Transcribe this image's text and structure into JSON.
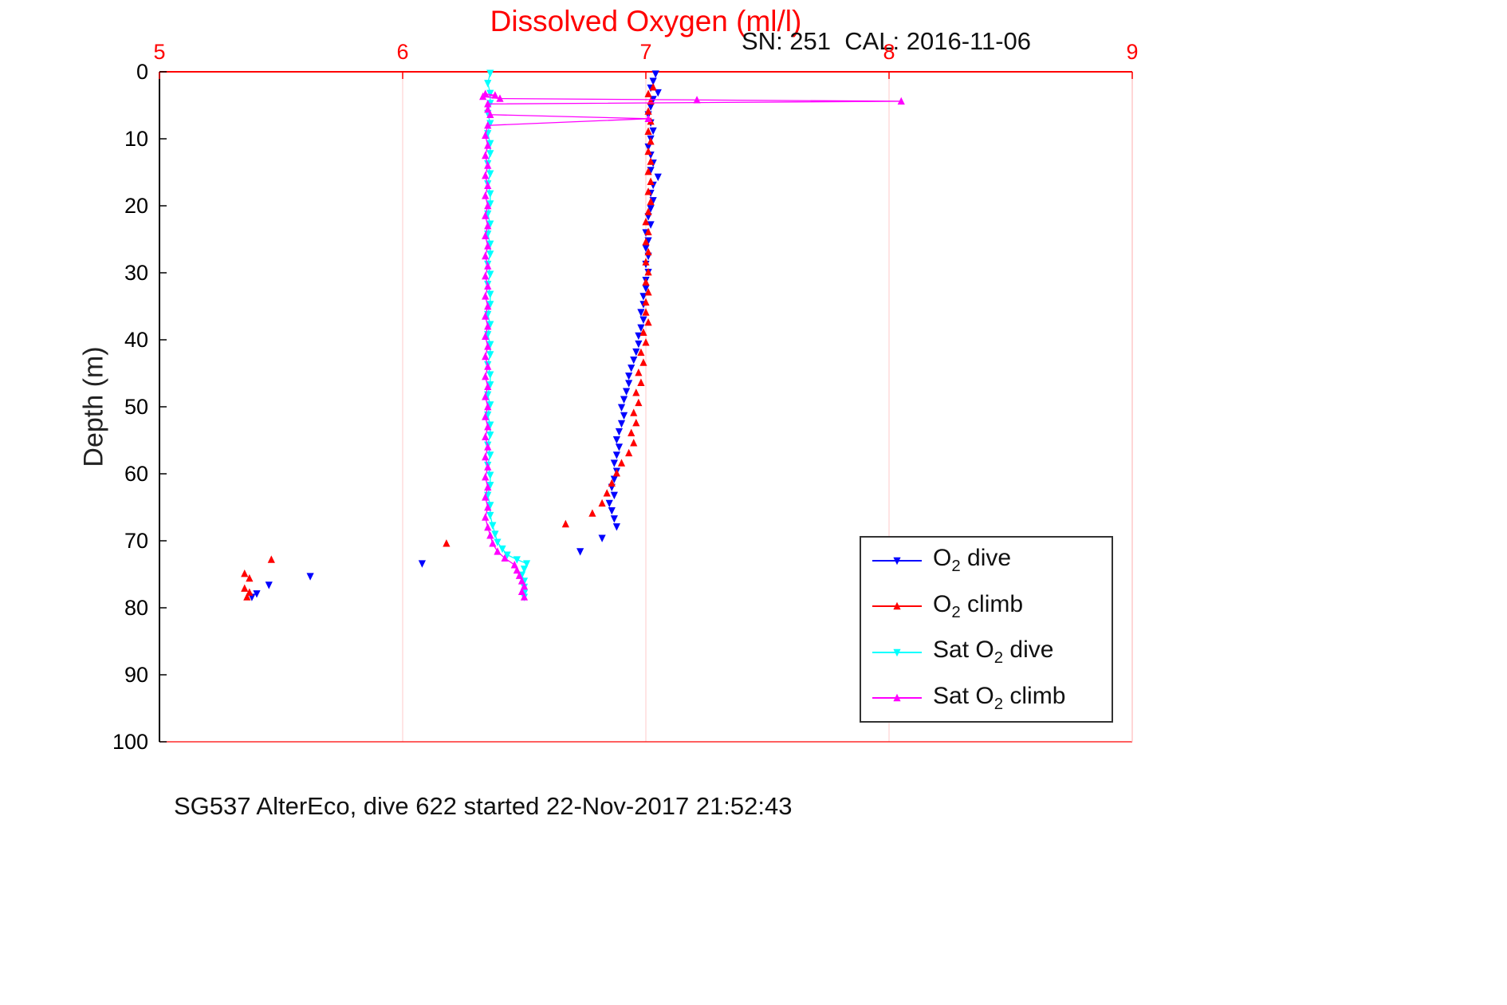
{
  "title": "Dissolved Oxygen (ml/l)",
  "annotation": "SN: 251  CAL: 2016-11-06",
  "caption": "SG537 AlterEco, dive 622 started 22-Nov-2017 21:52:43",
  "colors": {
    "title": "#ff0000",
    "x_axis": "#ff0000",
    "y_axis": "#000000",
    "grid": "#ffd9d9",
    "right_border": "#ffc4c4",
    "legend_border": "#333333"
  },
  "axes": {
    "x": {
      "position": "top",
      "min": 5,
      "max": 9,
      "ticks": [
        5,
        6,
        7,
        8,
        9
      ],
      "grid_ticks": [
        6,
        7,
        8
      ],
      "color": "#ff0000"
    },
    "y": {
      "label": "Depth (m)",
      "min": 0,
      "max": 100,
      "ticks": [
        0,
        10,
        20,
        30,
        40,
        50,
        60,
        70,
        80,
        90,
        100
      ],
      "inverted": true,
      "color": "#000000"
    }
  },
  "legend": {
    "entries": [
      {
        "id": "o2-dive",
        "pre": "O",
        "sub": "2",
        "post": " dive",
        "color": "#0000ff",
        "marker": "v"
      },
      {
        "id": "o2-climb",
        "pre": "O",
        "sub": "2",
        "post": " climb",
        "color": "#ff0000",
        "marker": "^"
      },
      {
        "id": "sat-o2-dive",
        "pre": "Sat O",
        "sub": "2",
        "post": " dive",
        "color": "#00ffff",
        "marker": "v"
      },
      {
        "id": "sat-o2-climb",
        "pre": "Sat O",
        "sub": "2",
        "post": " climb",
        "color": "#ff00ff",
        "marker": "^"
      }
    ]
  },
  "chart_data": {
    "type": "scatter",
    "title": "Dissolved Oxygen (ml/l)",
    "xlabel": "Dissolved Oxygen (ml/l)",
    "ylabel": "Depth (m)",
    "xlim": [
      5,
      9
    ],
    "ylim": [
      0,
      100
    ],
    "y_axis_inverted": true,
    "grid": "vertical-only",
    "legend_position": "bottom-right",
    "series": [
      {
        "name": "O2 dive",
        "id": "o2-dive",
        "color": "#0000ff",
        "marker": "v",
        "line": false,
        "points": [
          [
            7.04,
            0.3
          ],
          [
            7.03,
            1.4
          ],
          [
            7.02,
            2.4
          ],
          [
            7.05,
            3.1
          ],
          [
            7.03,
            4.1
          ],
          [
            7.02,
            5.2
          ],
          [
            7.01,
            6.4
          ],
          [
            7.02,
            7.6
          ],
          [
            7.03,
            8.8
          ],
          [
            7.02,
            10.0
          ],
          [
            7.01,
            11.2
          ],
          [
            7.02,
            12.4
          ],
          [
            7.03,
            13.6
          ],
          [
            7.02,
            14.7
          ],
          [
            7.05,
            15.7
          ],
          [
            7.03,
            16.9
          ],
          [
            7.02,
            18.1
          ],
          [
            7.03,
            19.2
          ],
          [
            7.02,
            20.4
          ],
          [
            7.01,
            21.6
          ],
          [
            7.02,
            22.8
          ],
          [
            7.0,
            24.0
          ],
          [
            7.01,
            25.2
          ],
          [
            7.0,
            26.3
          ],
          [
            7.01,
            27.5
          ],
          [
            7.0,
            28.7
          ],
          [
            7.01,
            29.9
          ],
          [
            7.0,
            31.1
          ],
          [
            7.0,
            32.3
          ],
          [
            6.99,
            33.5
          ],
          [
            6.99,
            34.7
          ],
          [
            6.98,
            35.9
          ],
          [
            6.99,
            37.0
          ],
          [
            6.98,
            38.2
          ],
          [
            6.97,
            39.4
          ],
          [
            6.97,
            40.6
          ],
          [
            6.96,
            41.8
          ],
          [
            6.95,
            43.0
          ],
          [
            6.94,
            44.2
          ],
          [
            6.93,
            45.4
          ],
          [
            6.93,
            46.5
          ],
          [
            6.92,
            47.7
          ],
          [
            6.91,
            48.9
          ],
          [
            6.9,
            50.1
          ],
          [
            6.91,
            51.3
          ],
          [
            6.9,
            52.5
          ],
          [
            6.89,
            53.7
          ],
          [
            6.88,
            54.9
          ],
          [
            6.89,
            56.0
          ],
          [
            6.88,
            57.2
          ],
          [
            6.87,
            58.4
          ],
          [
            6.88,
            59.6
          ],
          [
            6.87,
            60.8
          ],
          [
            6.86,
            62.0
          ],
          [
            6.87,
            63.2
          ],
          [
            6.85,
            64.4
          ],
          [
            6.86,
            65.5
          ],
          [
            6.87,
            66.7
          ],
          [
            6.88,
            67.9
          ],
          [
            6.82,
            69.6
          ],
          [
            6.73,
            71.6
          ],
          [
            6.08,
            73.4
          ],
          [
            5.62,
            75.3
          ],
          [
            5.45,
            76.6
          ],
          [
            5.4,
            77.9
          ],
          [
            5.38,
            78.4
          ]
        ]
      },
      {
        "name": "O2 climb",
        "id": "o2-climb",
        "color": "#ff0000",
        "marker": "^",
        "line": false,
        "points": [
          [
            5.36,
            78.4
          ],
          [
            5.37,
            77.7
          ],
          [
            5.35,
            77.1
          ],
          [
            5.37,
            75.6
          ],
          [
            5.35,
            74.9
          ],
          [
            5.46,
            72.8
          ],
          [
            6.18,
            70.4
          ],
          [
            6.67,
            67.5
          ],
          [
            6.78,
            65.9
          ],
          [
            6.82,
            64.4
          ],
          [
            6.84,
            62.9
          ],
          [
            6.86,
            61.4
          ],
          [
            6.88,
            59.9
          ],
          [
            6.9,
            58.4
          ],
          [
            6.93,
            56.9
          ],
          [
            6.95,
            55.4
          ],
          [
            6.94,
            53.9
          ],
          [
            6.96,
            52.4
          ],
          [
            6.95,
            50.9
          ],
          [
            6.97,
            49.4
          ],
          [
            6.96,
            47.9
          ],
          [
            6.98,
            46.4
          ],
          [
            6.97,
            44.9
          ],
          [
            6.99,
            43.4
          ],
          [
            6.98,
            41.9
          ],
          [
            7.0,
            40.4
          ],
          [
            6.99,
            38.9
          ],
          [
            7.01,
            37.4
          ],
          [
            7.0,
            35.9
          ],
          [
            7.0,
            34.4
          ],
          [
            7.01,
            32.9
          ],
          [
            7.0,
            31.4
          ],
          [
            7.01,
            29.9
          ],
          [
            7.0,
            28.4
          ],
          [
            7.01,
            26.9
          ],
          [
            7.0,
            25.4
          ],
          [
            7.01,
            23.9
          ],
          [
            7.0,
            22.4
          ],
          [
            7.01,
            20.9
          ],
          [
            7.02,
            19.4
          ],
          [
            7.01,
            17.9
          ],
          [
            7.02,
            16.4
          ],
          [
            7.01,
            14.9
          ],
          [
            7.02,
            13.4
          ],
          [
            7.01,
            11.9
          ],
          [
            7.02,
            10.4
          ],
          [
            7.01,
            8.9
          ],
          [
            7.02,
            7.4
          ],
          [
            7.01,
            5.9
          ],
          [
            7.02,
            4.4
          ],
          [
            7.01,
            3.3
          ],
          [
            7.03,
            2.3
          ]
        ]
      },
      {
        "name": "Sat O2 dive",
        "id": "sat-o2-dive",
        "color": "#00ffff",
        "marker": "v",
        "line": true,
        "points": [
          [
            6.36,
            0.2
          ],
          [
            6.35,
            1.7
          ],
          [
            6.36,
            3.2
          ],
          [
            6.36,
            4.7
          ],
          [
            6.35,
            6.2
          ],
          [
            6.36,
            7.7
          ],
          [
            6.35,
            9.2
          ],
          [
            6.36,
            10.7
          ],
          [
            6.36,
            12.2
          ],
          [
            6.35,
            13.7
          ],
          [
            6.36,
            15.2
          ],
          [
            6.35,
            16.7
          ],
          [
            6.36,
            18.2
          ],
          [
            6.36,
            19.7
          ],
          [
            6.35,
            21.2
          ],
          [
            6.36,
            22.7
          ],
          [
            6.35,
            24.2
          ],
          [
            6.36,
            25.7
          ],
          [
            6.36,
            27.2
          ],
          [
            6.35,
            28.7
          ],
          [
            6.36,
            30.2
          ],
          [
            6.35,
            31.7
          ],
          [
            6.36,
            33.2
          ],
          [
            6.36,
            34.7
          ],
          [
            6.35,
            36.2
          ],
          [
            6.36,
            37.7
          ],
          [
            6.35,
            39.2
          ],
          [
            6.36,
            40.7
          ],
          [
            6.36,
            42.2
          ],
          [
            6.35,
            43.7
          ],
          [
            6.36,
            45.2
          ],
          [
            6.36,
            46.7
          ],
          [
            6.35,
            48.2
          ],
          [
            6.36,
            49.7
          ],
          [
            6.35,
            51.2
          ],
          [
            6.36,
            52.7
          ],
          [
            6.36,
            54.2
          ],
          [
            6.35,
            55.7
          ],
          [
            6.36,
            57.2
          ],
          [
            6.35,
            58.7
          ],
          [
            6.36,
            60.2
          ],
          [
            6.36,
            61.7
          ],
          [
            6.35,
            63.2
          ],
          [
            6.36,
            64.7
          ],
          [
            6.36,
            66.2
          ],
          [
            6.37,
            67.7
          ],
          [
            6.38,
            69.0
          ],
          [
            6.39,
            70.2
          ],
          [
            6.41,
            71.2
          ],
          [
            6.43,
            72.1
          ],
          [
            6.47,
            72.8
          ],
          [
            6.51,
            73.4
          ],
          [
            6.5,
            74.2
          ],
          [
            6.49,
            75.1
          ],
          [
            6.5,
            76.0
          ],
          [
            6.5,
            76.9
          ],
          [
            6.5,
            77.8
          ],
          [
            6.5,
            78.4
          ]
        ]
      },
      {
        "name": "Sat O2 climb",
        "id": "sat-o2-climb",
        "color": "#ff00ff",
        "marker": "^",
        "line": true,
        "points": [
          [
            6.5,
            78.4
          ],
          [
            6.49,
            77.6
          ],
          [
            6.5,
            76.8
          ],
          [
            6.49,
            76.0
          ],
          [
            6.48,
            75.2
          ],
          [
            6.47,
            74.4
          ],
          [
            6.46,
            73.6
          ],
          [
            6.42,
            72.6
          ],
          [
            6.39,
            71.6
          ],
          [
            6.37,
            70.4
          ],
          [
            6.36,
            69.2
          ],
          [
            6.35,
            68.0
          ],
          [
            6.34,
            66.5
          ],
          [
            6.35,
            65.0
          ],
          [
            6.34,
            63.5
          ],
          [
            6.35,
            62.0
          ],
          [
            6.34,
            60.5
          ],
          [
            6.35,
            59.0
          ],
          [
            6.34,
            57.5
          ],
          [
            6.35,
            56.0
          ],
          [
            6.34,
            54.5
          ],
          [
            6.35,
            53.0
          ],
          [
            6.34,
            51.5
          ],
          [
            6.35,
            50.0
          ],
          [
            6.34,
            48.5
          ],
          [
            6.35,
            47.0
          ],
          [
            6.34,
            45.5
          ],
          [
            6.35,
            44.0
          ],
          [
            6.34,
            42.5
          ],
          [
            6.35,
            41.0
          ],
          [
            6.34,
            39.5
          ],
          [
            6.35,
            38.0
          ],
          [
            6.34,
            36.5
          ],
          [
            6.35,
            35.0
          ],
          [
            6.34,
            33.5
          ],
          [
            6.35,
            32.0
          ],
          [
            6.34,
            30.5
          ],
          [
            6.35,
            29.0
          ],
          [
            6.34,
            27.5
          ],
          [
            6.35,
            26.0
          ],
          [
            6.34,
            24.5
          ],
          [
            6.35,
            23.0
          ],
          [
            6.34,
            21.5
          ],
          [
            6.35,
            20.0
          ],
          [
            6.34,
            18.5
          ],
          [
            6.35,
            17.0
          ],
          [
            6.34,
            15.5
          ],
          [
            6.35,
            14.0
          ],
          [
            6.34,
            12.5
          ],
          [
            6.35,
            11.0
          ],
          [
            6.34,
            9.5
          ],
          [
            6.35,
            8.0
          ],
          [
            7.01,
            7.0
          ],
          [
            6.36,
            6.4
          ],
          [
            6.35,
            5.6
          ],
          [
            6.35,
            4.8
          ],
          [
            8.05,
            4.4
          ],
          [
            7.21,
            4.2
          ],
          [
            6.4,
            4.0
          ],
          [
            6.33,
            3.7
          ],
          [
            6.38,
            3.5
          ],
          [
            6.34,
            3.3
          ]
        ]
      }
    ]
  }
}
